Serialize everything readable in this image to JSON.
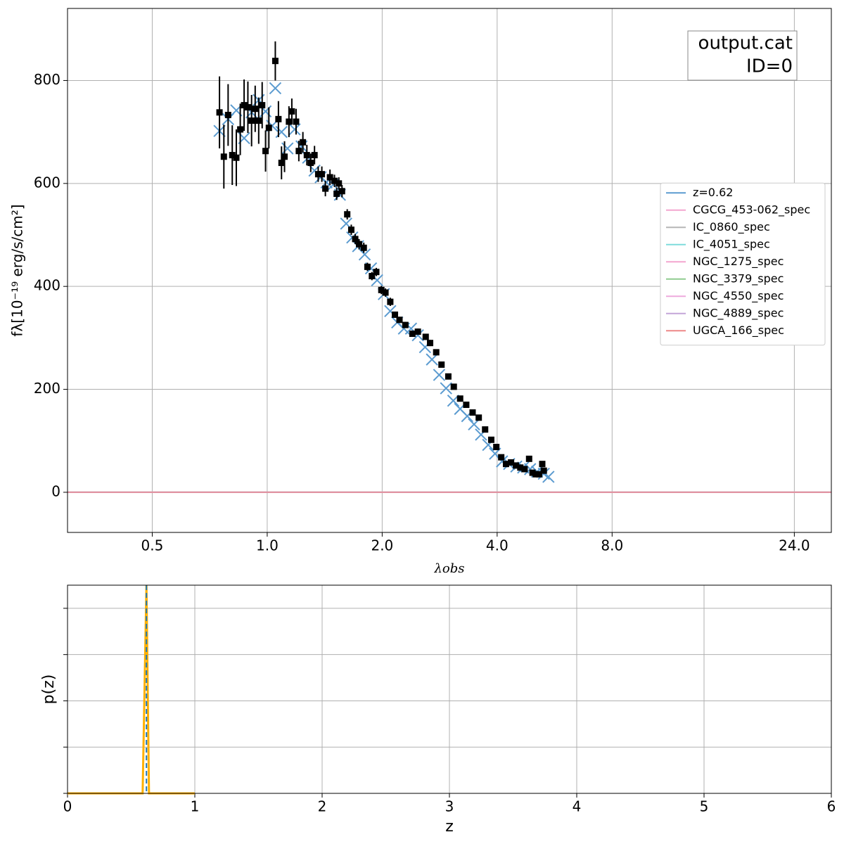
{
  "chart_data": [
    {
      "type": "sed",
      "xlabel": "λobs",
      "ylabel": "fλ[10⁻¹⁹ erg/s/cm²]",
      "annotation": [
        "output.cat",
        "ID=0"
      ],
      "xscale": "log",
      "xlim": [
        0.3,
        30
      ],
      "xticks": [
        0.5,
        {
          "value": 1,
          "label": "1.0"
        },
        {
          "value": 2,
          "label": "2.0"
        },
        {
          "value": 4,
          "label": "4.0"
        },
        {
          "value": 8,
          "label": "8.0"
        },
        {
          "value": 24,
          "label": "24.0"
        }
      ],
      "ylim": [
        -78,
        940
      ],
      "yticks": [
        0,
        200,
        400,
        600,
        800
      ],
      "grid": true,
      "legend": "center right",
      "observed": {
        "color": "#000000",
        "x": [
          0.75,
          0.77,
          0.79,
          0.81,
          0.83,
          0.85,
          0.87,
          0.89,
          0.91,
          0.93,
          0.95,
          0.97,
          0.99,
          1.01,
          1.05,
          1.07,
          1.09,
          1.11,
          1.14,
          1.16,
          1.19,
          1.21,
          1.24,
          1.27,
          1.3,
          1.33,
          1.36,
          1.39,
          1.42,
          1.46,
          1.5,
          1.52,
          1.54,
          1.57,
          1.62,
          1.66,
          1.7,
          1.74,
          1.79,
          1.83,
          1.88,
          1.93,
          1.99,
          2.04,
          2.1,
          2.16,
          2.22,
          2.3,
          2.4,
          2.48,
          2.6,
          2.67,
          2.77,
          2.86,
          2.98,
          3.08,
          3.2,
          3.32,
          3.45,
          3.58,
          3.72,
          3.86,
          3.98,
          4.1,
          4.22,
          4.35,
          4.48,
          4.6,
          4.72,
          4.85,
          4.95,
          5.05,
          5.15,
          5.25,
          5.3
        ],
        "values": [
          738,
          652,
          733,
          655,
          650,
          705,
          752,
          748,
          722,
          745,
          722,
          752,
          663,
          708,
          838,
          725,
          640,
          652,
          720,
          740,
          720,
          663,
          680,
          655,
          640,
          655,
          618,
          618,
          590,
          612,
          605,
          580,
          600,
          585,
          540,
          510,
          492,
          482,
          475,
          438,
          420,
          428,
          393,
          388,
          370,
          345,
          335,
          325,
          308,
          312,
          302,
          290,
          272,
          248,
          225,
          205,
          182,
          170,
          155,
          145,
          122,
          102,
          88,
          68,
          55,
          58,
          52,
          48,
          45,
          65,
          38,
          35,
          35,
          55,
          42
        ],
        "errors": [
          70,
          62,
          60,
          58,
          55,
          50,
          50,
          50,
          50,
          45,
          45,
          45,
          40,
          40,
          38,
          35,
          32,
          30,
          30,
          25,
          25,
          20,
          20,
          20,
          18,
          18,
          15,
          15,
          15,
          15,
          12,
          12,
          12,
          12,
          10,
          10,
          10,
          10,
          10,
          8,
          8,
          8,
          8,
          8,
          8,
          6,
          6,
          6,
          6,
          6,
          6,
          6,
          5,
          5,
          5,
          5,
          5,
          5,
          5,
          4,
          4,
          4,
          4,
          4,
          4,
          4,
          4,
          4,
          4,
          4,
          4,
          4,
          4,
          4,
          4
        ]
      },
      "series": [
        {
          "name": "z=0.62",
          "color": "#5b9bd0",
          "marker": "x",
          "x": [
            0.75,
            0.79,
            0.83,
            0.87,
            0.91,
            0.95,
            0.99,
            1.03,
            1.05,
            1.09,
            1.13,
            1.18,
            1.23,
            1.28,
            1.33,
            1.38,
            1.43,
            1.49,
            1.55,
            1.61,
            1.67,
            1.73,
            1.8,
            1.87,
            1.94,
            2.02,
            2.1,
            2.19,
            2.28,
            2.38,
            2.48,
            2.59,
            2.7,
            2.82,
            2.94,
            3.07,
            3.2,
            3.34,
            3.48,
            3.63,
            3.79,
            3.95,
            4.12,
            4.3,
            4.49,
            4.68,
            4.88,
            5.09,
            5.3,
            5.45
          ],
          "values": [
            702,
            725,
            742,
            688,
            738,
            762,
            740,
            712,
            785,
            700,
            668,
            705,
            672,
            650,
            625,
            612,
            602,
            598,
            578,
            522,
            495,
            478,
            462,
            435,
            412,
            385,
            352,
            330,
            318,
            318,
            305,
            282,
            258,
            228,
            202,
            178,
            162,
            148,
            132,
            112,
            92,
            75,
            60,
            55,
            50,
            48,
            45,
            40,
            36,
            30
          ]
        },
        {
          "name": "CGCG_453-062_spec",
          "color": "#f4a6cf",
          "x": [
            0.3,
            30
          ],
          "values": [
            0,
            0
          ]
        },
        {
          "name": "IC_0860_spec",
          "color": "#b5b5b5",
          "x": [
            0.3,
            30
          ],
          "values": [
            0,
            0
          ]
        },
        {
          "name": "IC_4051_spec",
          "color": "#7fdcdc",
          "x": [
            0.3,
            30
          ],
          "values": [
            0,
            0
          ]
        },
        {
          "name": "NGC_1275_spec",
          "color": "#f4a6cf",
          "x": [
            0.3,
            30
          ],
          "values": [
            0,
            0
          ]
        },
        {
          "name": "NGC_3379_spec",
          "color": "#8fcc8f",
          "x": [
            0.3,
            30
          ],
          "values": [
            0,
            0
          ]
        },
        {
          "name": "NGC_4550_spec",
          "color": "#eeaadd",
          "x": [
            0.3,
            30
          ],
          "values": [
            0,
            0
          ]
        },
        {
          "name": "NGC_4889_spec",
          "color": "#c4a5d8",
          "x": [
            0.3,
            30
          ],
          "values": [
            0,
            0
          ]
        },
        {
          "name": "UGCA_166_spec",
          "color": "#ee8888",
          "x": [
            0.3,
            30
          ],
          "values": [
            0,
            0
          ]
        }
      ]
    },
    {
      "type": "line",
      "xlabel": "z",
      "ylabel": "p(z)",
      "xlim": [
        0,
        6
      ],
      "xticks": [
        0,
        1,
        2,
        3,
        4,
        5,
        6
      ],
      "ylim": [
        0,
        4.5
      ],
      "yticks": [
        0,
        1,
        2,
        3,
        4
      ],
      "grid": true,
      "x": [
        0,
        0.59,
        0.62,
        0.64,
        1
      ],
      "values": [
        0,
        0,
        4.5,
        0,
        0
      ],
      "color": "#ffb000",
      "vline": 0.62,
      "vline_color": "#1f77b4"
    }
  ]
}
